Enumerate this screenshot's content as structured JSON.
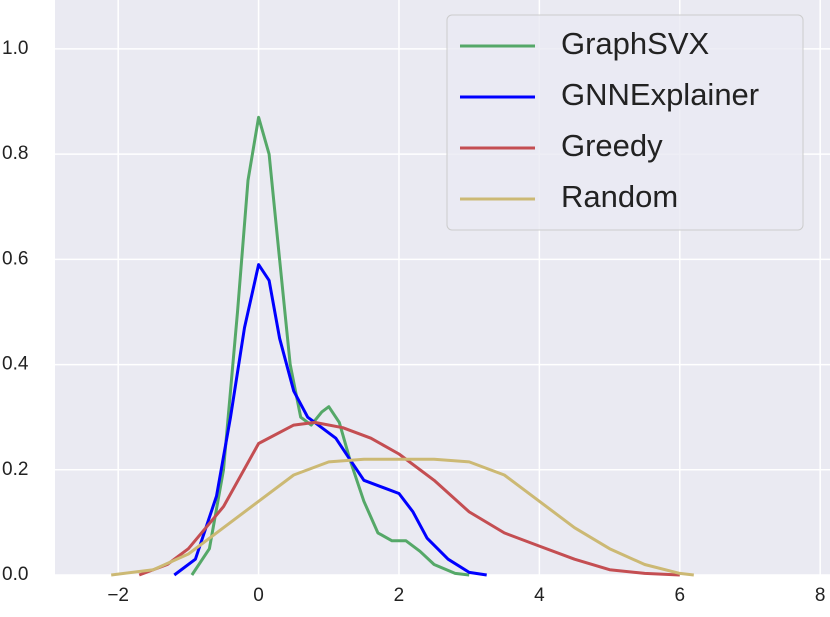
{
  "chart_data": {
    "type": "line",
    "xlim": [
      -2.9,
      8.14
    ],
    "ylim": [
      0,
      1.093
    ],
    "xticks": [
      {
        "value": -2,
        "label": "−2"
      },
      0,
      2,
      4,
      6,
      8
    ],
    "yticks": [
      {
        "value": 0,
        "label": "0.0"
      },
      0.2,
      0.4,
      0.6,
      0.8,
      {
        "value": 1,
        "label": "1.0"
      }
    ],
    "grid": true,
    "legend": "upper right",
    "series": [
      {
        "name": "GraphSVX",
        "color": "#55a868",
        "x": [
          -0.95,
          -0.7,
          -0.5,
          -0.3,
          -0.15,
          0,
          0.15,
          0.3,
          0.45,
          0.6,
          0.75,
          0.9,
          1.0,
          1.15,
          1.3,
          1.5,
          1.7,
          1.9,
          2.1,
          2.3,
          2.5,
          2.8,
          3.0
        ],
        "values": [
          0,
          0.05,
          0.2,
          0.5,
          0.75,
          0.87,
          0.8,
          0.6,
          0.4,
          0.3,
          0.285,
          0.31,
          0.32,
          0.29,
          0.22,
          0.14,
          0.08,
          0.065,
          0.065,
          0.045,
          0.02,
          0.003,
          0
        ]
      },
      {
        "name": "GNNExplainer",
        "color": "#0000ff",
        "x": [
          -1.2,
          -0.9,
          -0.6,
          -0.4,
          -0.2,
          0,
          0.15,
          0.3,
          0.5,
          0.7,
          0.9,
          1.1,
          1.3,
          1.5,
          1.8,
          2.0,
          2.2,
          2.4,
          2.7,
          3.0,
          3.25
        ],
        "values": [
          0,
          0.03,
          0.15,
          0.3,
          0.47,
          0.59,
          0.56,
          0.45,
          0.35,
          0.3,
          0.28,
          0.26,
          0.22,
          0.18,
          0.165,
          0.155,
          0.12,
          0.07,
          0.03,
          0.005,
          0
        ]
      },
      {
        "name": "Greedy",
        "color": "#c44e52",
        "x": [
          -1.7,
          -1.3,
          -1.0,
          -0.5,
          0,
          0.5,
          0.8,
          1.2,
          1.6,
          2.0,
          2.5,
          3.0,
          3.5,
          4.0,
          4.5,
          5.0,
          5.5,
          6.0
        ],
        "values": [
          0,
          0.02,
          0.05,
          0.13,
          0.25,
          0.285,
          0.29,
          0.28,
          0.26,
          0.23,
          0.18,
          0.12,
          0.08,
          0.055,
          0.03,
          0.01,
          0.003,
          0
        ]
      },
      {
        "name": "Random",
        "color": "#ccb974",
        "x": [
          -2.1,
          -1.5,
          -1.0,
          -0.5,
          0,
          0.5,
          1.0,
          1.5,
          2.0,
          2.5,
          3.0,
          3.5,
          4.0,
          4.5,
          5.0,
          5.5,
          6.0,
          6.2
        ],
        "values": [
          0,
          0.01,
          0.04,
          0.09,
          0.14,
          0.19,
          0.215,
          0.22,
          0.22,
          0.22,
          0.215,
          0.19,
          0.14,
          0.09,
          0.05,
          0.02,
          0.003,
          0
        ]
      }
    ]
  }
}
